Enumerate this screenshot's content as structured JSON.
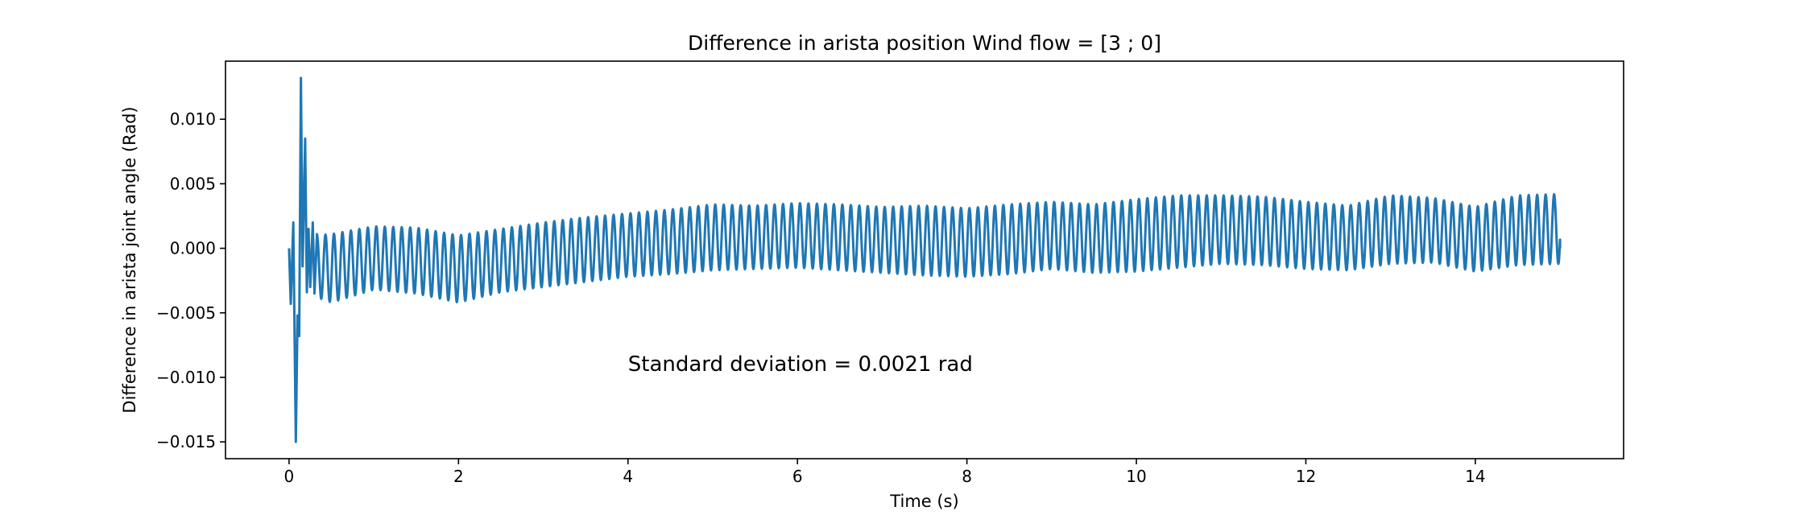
{
  "chart_data": {
    "type": "line",
    "title": "Difference in arista position Wind flow = [3 ; 0]",
    "xlabel": "Time (s)",
    "ylabel": "Difference in arista joint angle (Rad)",
    "xlim": [
      -0.75,
      15.75
    ],
    "ylim": [
      -0.0163,
      0.0145
    ],
    "xticks": [
      0,
      2,
      4,
      6,
      8,
      10,
      12,
      14
    ],
    "xtick_labels": [
      "0",
      "2",
      "4",
      "6",
      "8",
      "10",
      "12",
      "14"
    ],
    "yticks": [
      0.01,
      0.005,
      0.0,
      -0.005,
      -0.01,
      -0.015
    ],
    "ytick_labels": [
      "0.010",
      "0.005",
      "0.000",
      "−0.005",
      "−0.010",
      "−0.015"
    ],
    "grid": false,
    "legend": "none",
    "line_color": "#1f77b4",
    "annotation": {
      "text": "Standard deviation = 0.0021 rad",
      "x": 4.0,
      "y": -0.0095
    },
    "series": [
      {
        "oscillation_period_s": 0.1,
        "transient": {
          "x": [
            0.0,
            0.02,
            0.05,
            0.08,
            0.1,
            0.12,
            0.14,
            0.16,
            0.19,
            0.21,
            0.23,
            0.25,
            0.28,
            0.3,
            0.33
          ],
          "y": [
            0.0,
            -0.0043,
            0.002,
            -0.015,
            -0.0052,
            -0.0068,
            0.0132,
            -0.0014,
            0.0085,
            -0.0034,
            0.0015,
            -0.003,
            0.002,
            -0.0035,
            0.0011
          ]
        },
        "envelope": {
          "t": [
            0.33,
            0.5,
            1.0,
            1.5,
            2.0,
            2.5,
            3.0,
            3.5,
            4.0,
            4.5,
            5.0,
            5.5,
            6.0,
            6.5,
            7.0,
            7.5,
            8.0,
            8.5,
            9.0,
            9.5,
            10.0,
            10.5,
            11.0,
            11.5,
            12.0,
            12.5,
            13.0,
            13.5,
            14.0,
            14.5,
            15.0
          ],
          "max": [
            0.001,
            0.0011,
            0.0017,
            0.0016,
            0.001,
            0.0015,
            0.002,
            0.0024,
            0.0027,
            0.003,
            0.0034,
            0.0033,
            0.0035,
            0.0034,
            0.0032,
            0.0033,
            0.0031,
            0.0034,
            0.0036,
            0.0034,
            0.0038,
            0.0041,
            0.0041,
            0.004,
            0.0036,
            0.0033,
            0.0041,
            0.0039,
            0.0032,
            0.0041,
            0.0042
          ],
          "min": [
            -0.0038,
            -0.0042,
            -0.0032,
            -0.0035,
            -0.0042,
            -0.0034,
            -0.003,
            -0.0026,
            -0.0022,
            -0.002,
            -0.0017,
            -0.0016,
            -0.0015,
            -0.0017,
            -0.0019,
            -0.0021,
            -0.0022,
            -0.002,
            -0.0016,
            -0.0019,
            -0.0018,
            -0.0015,
            -0.0012,
            -0.0013,
            -0.0016,
            -0.0017,
            -0.0012,
            -0.0011,
            -0.0018,
            -0.0013,
            -0.0012
          ]
        }
      }
    ]
  }
}
